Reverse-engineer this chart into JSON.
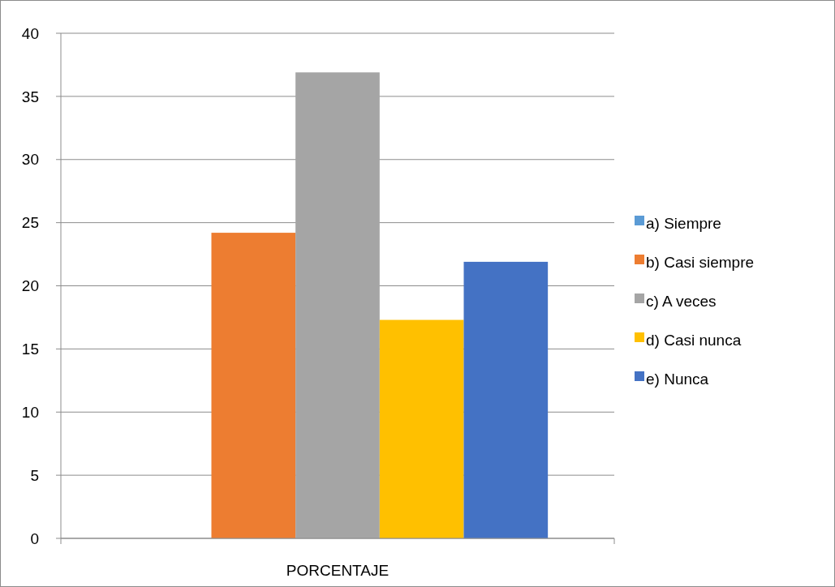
{
  "chart_data": {
    "type": "bar",
    "categories": [
      "PORCENTAJE"
    ],
    "series": [
      {
        "name": "a) Siempre",
        "color": "#5b9bd5",
        "values": [
          0
        ]
      },
      {
        "name": "b) Casi siempre",
        "color": "#ed7d31",
        "values": [
          24.2
        ]
      },
      {
        "name": "c) A veces",
        "color": "#a5a5a5",
        "values": [
          36.9
        ]
      },
      {
        "name": "d) Casi nunca",
        "color": "#ffc000",
        "values": [
          17.3
        ]
      },
      {
        "name": "e) Nunca",
        "color": "#4472c4",
        "values": [
          21.9
        ]
      }
    ],
    "ylim": [
      0,
      40
    ],
    "yticks": [
      0,
      5,
      10,
      15,
      20,
      25,
      30,
      35,
      40
    ],
    "grid": "y",
    "legend": "right"
  }
}
